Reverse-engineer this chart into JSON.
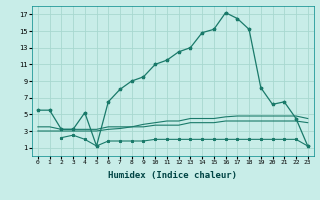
{
  "background_color": "#c8ede8",
  "grid_color": "#a8d8d0",
  "line_color": "#1a7a6a",
  "xlabel": "Humidex (Indice chaleur)",
  "ylim": [
    0,
    18
  ],
  "xlim": [
    -0.5,
    23.5
  ],
  "yticks": [
    1,
    3,
    5,
    7,
    9,
    11,
    13,
    15,
    17
  ],
  "xticks": [
    0,
    1,
    2,
    3,
    4,
    5,
    6,
    7,
    8,
    9,
    10,
    11,
    12,
    13,
    14,
    15,
    16,
    17,
    18,
    19,
    20,
    21,
    22,
    23
  ],
  "main_x": [
    0,
    1,
    2,
    3,
    4,
    5,
    6,
    7,
    8,
    9,
    10,
    11,
    12,
    13,
    14,
    15,
    16,
    17,
    18,
    19,
    20,
    21,
    22,
    23
  ],
  "main_y": [
    5.5,
    5.5,
    3.2,
    3.2,
    5.2,
    1.2,
    6.5,
    8.0,
    9.0,
    9.5,
    11.0,
    11.5,
    12.5,
    13.0,
    14.8,
    15.2,
    17.2,
    16.5,
    15.2,
    8.2,
    6.2,
    6.5,
    4.5,
    1.2
  ],
  "line2_x": [
    0,
    1,
    2,
    3,
    4,
    5,
    6,
    7,
    8,
    9,
    10,
    11,
    12,
    13,
    14,
    15,
    16,
    17,
    18,
    19,
    20,
    21,
    22,
    23
  ],
  "line2_y": [
    3.5,
    3.5,
    3.2,
    3.2,
    3.2,
    3.2,
    3.5,
    3.5,
    3.5,
    3.8,
    4.0,
    4.2,
    4.2,
    4.5,
    4.5,
    4.5,
    4.7,
    4.8,
    4.8,
    4.8,
    4.8,
    4.8,
    4.8,
    4.5
  ],
  "line3_x": [
    0,
    1,
    2,
    3,
    4,
    5,
    6,
    7,
    8,
    9,
    10,
    11,
    12,
    13,
    14,
    15,
    16,
    17,
    18,
    19,
    20,
    21,
    22,
    23
  ],
  "line3_y": [
    3.0,
    3.0,
    3.0,
    3.0,
    3.0,
    3.0,
    3.2,
    3.3,
    3.5,
    3.5,
    3.7,
    3.7,
    3.7,
    4.0,
    4.0,
    4.0,
    4.2,
    4.2,
    4.2,
    4.2,
    4.2,
    4.2,
    4.2,
    4.0
  ],
  "line4_x": [
    2,
    3,
    4,
    5,
    6,
    7,
    8,
    9,
    10,
    11,
    12,
    13,
    14,
    15,
    16,
    17,
    18,
    19,
    20,
    21,
    22,
    23
  ],
  "line4_y": [
    2.2,
    2.5,
    2.0,
    1.2,
    1.8,
    1.8,
    1.8,
    1.8,
    2.0,
    2.0,
    2.0,
    2.0,
    2.0,
    2.0,
    2.0,
    2.0,
    2.0,
    2.0,
    2.0,
    2.0,
    2.0,
    1.2
  ]
}
